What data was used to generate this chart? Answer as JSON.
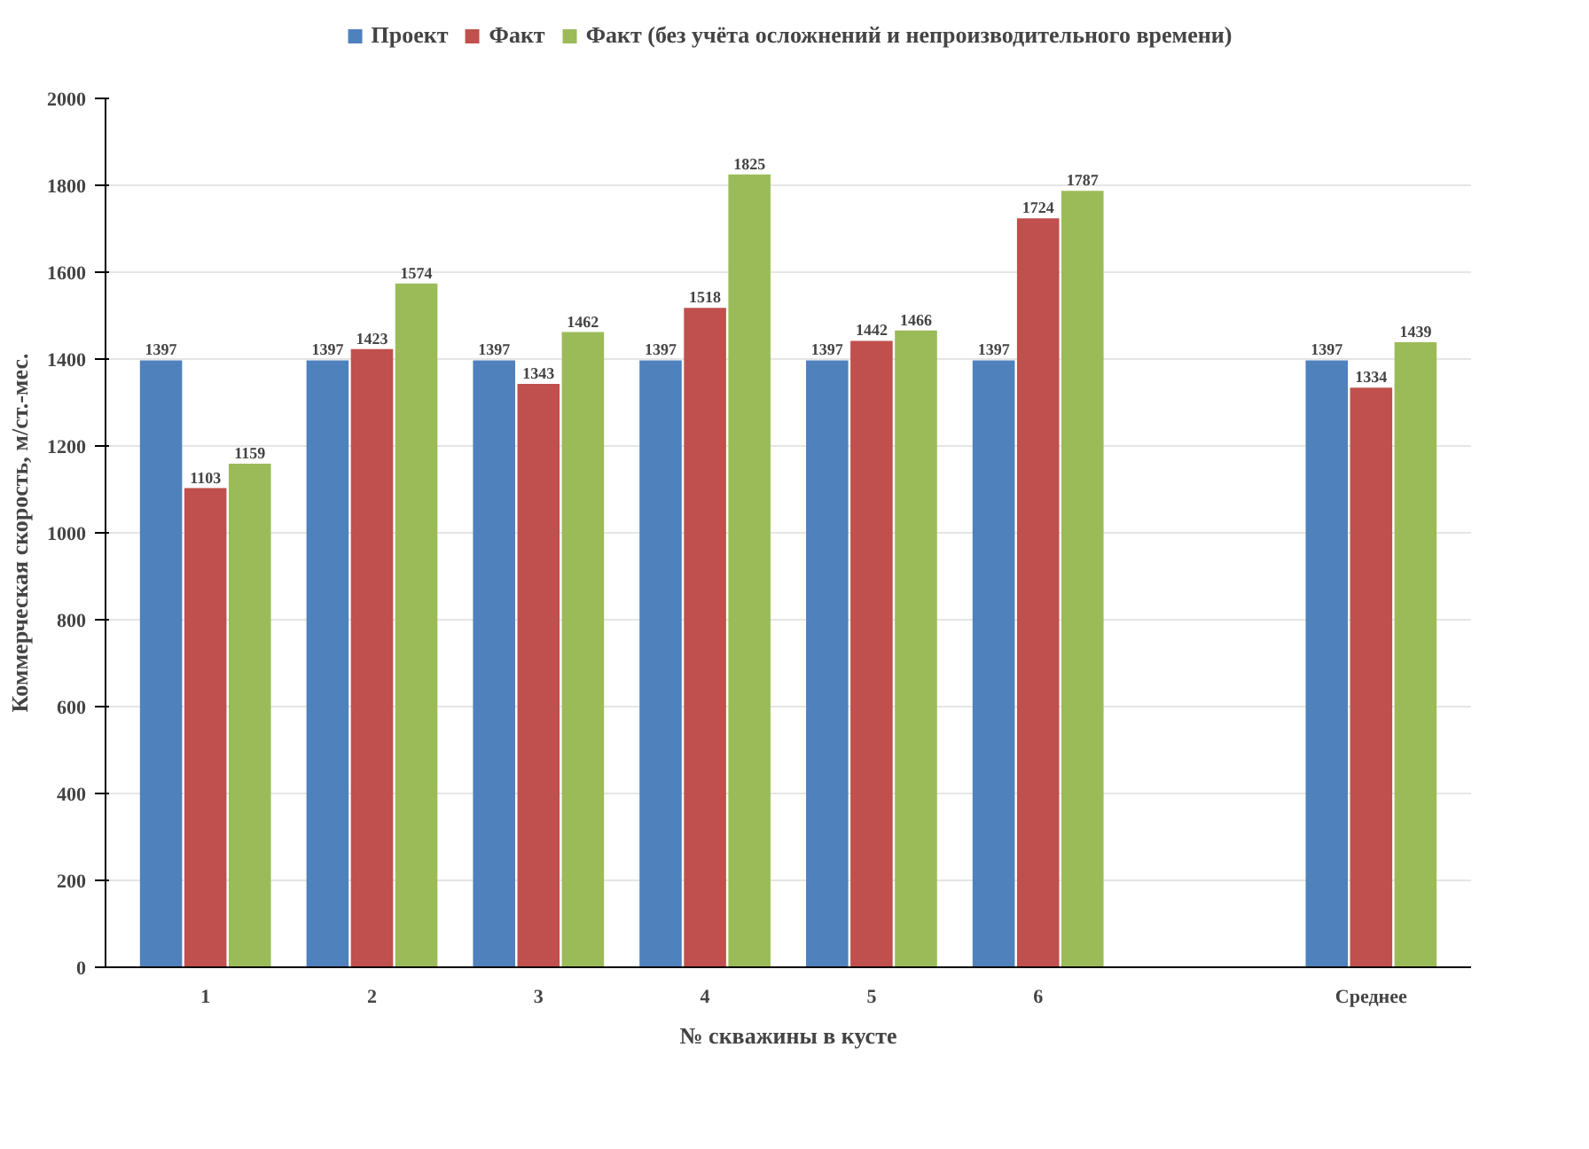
{
  "chart_data": {
    "type": "bar",
    "xlabel": "№ скважины в кусте",
    "ylabel": "Коммерческая скорость, м/ст.-мес.",
    "categories": [
      "1",
      "2",
      "3",
      "4",
      "5",
      "6",
      null,
      "Среднее"
    ],
    "series": [
      {
        "name": "Проект",
        "color": "#4f81bd",
        "values": [
          1397,
          1397,
          1397,
          1397,
          1397,
          1397,
          null,
          1397
        ]
      },
      {
        "name": "Факт",
        "color": "#c0504d",
        "values": [
          1103,
          1423,
          1343,
          1518,
          1442,
          1724,
          null,
          1334
        ]
      },
      {
        "name": "Факт (без учёта осложнений и непроизводительного времени)",
        "color": "#9bbb59",
        "values": [
          1159,
          1574,
          1462,
          1825,
          1466,
          1787,
          null,
          1439
        ]
      }
    ],
    "ylim": [
      0,
      2000
    ],
    "yticks": [
      0,
      200,
      400,
      600,
      800,
      1000,
      1200,
      1400,
      1600,
      1800,
      2000
    ],
    "grid": "y",
    "legend": "top",
    "data_labels": true
  }
}
